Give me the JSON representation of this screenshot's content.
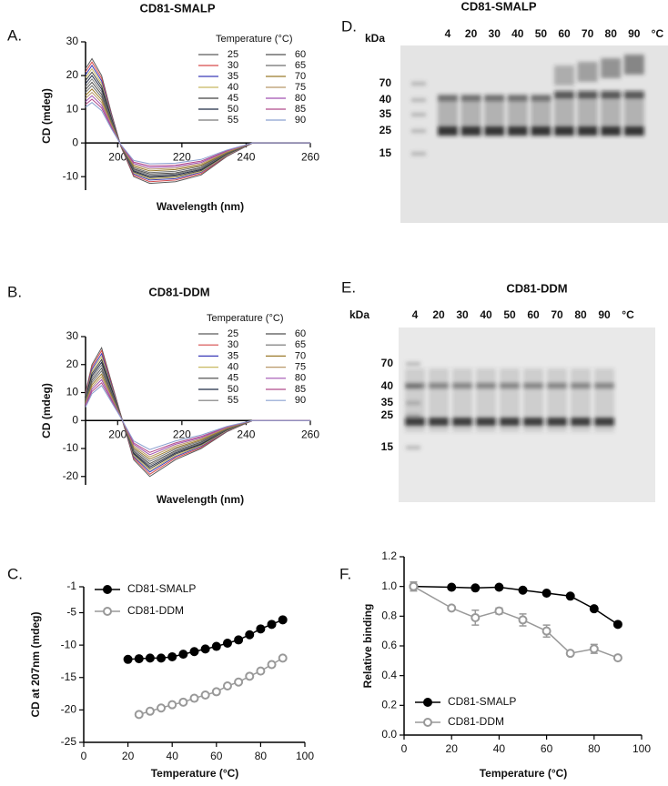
{
  "chart_data": [
    {
      "type": "line",
      "panel_label": "A.",
      "title": "CD81-SMALP",
      "x_label": "Wavelength (nm)",
      "y_label": "CD (mdeg)",
      "legend_title": "Temperature (°C)",
      "x_axis_at_zero": true,
      "xlim": [
        190,
        260
      ],
      "xticks": [
        200,
        220,
        240,
        260
      ],
      "ylim": [
        -14,
        30
      ],
      "yticks": [
        -10,
        0,
        10,
        20,
        30
      ],
      "x": [
        190,
        192,
        195,
        198,
        201,
        205,
        210,
        218,
        226,
        234,
        242,
        260
      ],
      "series": [
        {
          "name": "25",
          "color": "#5a5a5a",
          "values": [
            22,
            25,
            20,
            9,
            -1,
            -10,
            -12,
            -11.5,
            -9.5,
            -4,
            0,
            0
          ]
        },
        {
          "name": "30",
          "color": "#d64a4a",
          "values": [
            21.1,
            24,
            19.2,
            8.6,
            -1,
            -9.6,
            -11.5,
            -11,
            -9.1,
            -3.8,
            0,
            0
          ]
        },
        {
          "name": "35",
          "color": "#3a3ab8",
          "values": [
            20.2,
            23,
            18.4,
            8.3,
            -0.9,
            -9.2,
            -11,
            -10.6,
            -8.7,
            -3.7,
            0,
            0
          ]
        },
        {
          "name": "40",
          "color": "#c8b860",
          "values": [
            19.4,
            22,
            17.6,
            7.9,
            -0.9,
            -8.9,
            -10.7,
            -10.2,
            -8.5,
            -3.6,
            0,
            0
          ]
        },
        {
          "name": "45",
          "color": "#404040",
          "values": [
            18.5,
            21,
            16.8,
            7.6,
            -0.9,
            -8.6,
            -10.3,
            -9.9,
            -8.2,
            -3.4,
            0,
            0
          ]
        },
        {
          "name": "50",
          "color": "#1f2a44",
          "values": [
            17.6,
            20,
            16,
            7.2,
            -0.8,
            -8.3,
            -10,
            -9.5,
            -7.9,
            -3.3,
            0,
            0
          ]
        },
        {
          "name": "55",
          "color": "#7a7a7a",
          "values": [
            16.7,
            19,
            15.2,
            6.8,
            -0.8,
            -8,
            -9.6,
            -9.2,
            -7.6,
            -3.2,
            0,
            0
          ]
        },
        {
          "name": "60",
          "color": "#505050",
          "values": [
            15.8,
            18,
            14.4,
            6.5,
            -0.8,
            -7.7,
            -9.2,
            -8.9,
            -7.3,
            -3.1,
            0,
            0
          ]
        },
        {
          "name": "65",
          "color": "#6e6e6e",
          "values": [
            15,
            17,
            13.6,
            6.1,
            -0.7,
            -7.3,
            -8.8,
            -8.4,
            -6.9,
            -2.9,
            0,
            0
          ]
        },
        {
          "name": "70",
          "color": "#9a7a2a",
          "values": [
            14.1,
            16,
            12.8,
            5.8,
            -0.7,
            -6.9,
            -8.3,
            -7.9,
            -6.6,
            -2.8,
            0,
            0
          ]
        },
        {
          "name": "75",
          "color": "#b89868",
          "values": [
            13.2,
            15,
            12,
            5.4,
            -0.7,
            -6.5,
            -7.8,
            -7.5,
            -6.2,
            -2.6,
            0,
            0
          ]
        },
        {
          "name": "80",
          "color": "#a050b0",
          "values": [
            12.3,
            14,
            11.2,
            5,
            -0.6,
            -6.1,
            -7.3,
            -7,
            -5.8,
            -2.4,
            0,
            0
          ]
        },
        {
          "name": "85",
          "color": "#b04a8a",
          "values": [
            11.4,
            13,
            10.4,
            4.7,
            -0.6,
            -5.7,
            -6.8,
            -6.6,
            -5.4,
            -2.3,
            0,
            0
          ]
        },
        {
          "name": "90",
          "color": "#8aa0d0",
          "values": [
            10.6,
            12,
            9.6,
            4.3,
            -0.5,
            -5.2,
            -6.2,
            -6,
            -4.9,
            -2.1,
            0,
            0
          ]
        }
      ]
    },
    {
      "type": "line",
      "panel_label": "B.",
      "title": "CD81-DDM",
      "x_label": "Wavelength (nm)",
      "y_label": "CD (mdeg)",
      "legend_title": "Temperature (°C)",
      "x_axis_at_zero": true,
      "xlim": [
        190,
        260
      ],
      "xticks": [
        200,
        220,
        240,
        260
      ],
      "ylim": [
        -23,
        30
      ],
      "yticks": [
        -20,
        -10,
        0,
        10,
        20,
        30
      ],
      "x": [
        190,
        192,
        195,
        198,
        201,
        205,
        210,
        218,
        226,
        234,
        242,
        260
      ],
      "series": [
        {
          "name": "25",
          "color": "#5a5a5a",
          "values": [
            10,
            20,
            26,
            14,
            2,
            -14,
            -20,
            -14,
            -10,
            -4,
            0,
            0
          ]
        },
        {
          "name": "30",
          "color": "#d64a4a",
          "values": [
            9.6,
            19.2,
            25,
            13.4,
            1.9,
            -13.4,
            -19.2,
            -13.4,
            -9.6,
            -3.8,
            0,
            0
          ]
        },
        {
          "name": "35",
          "color": "#3a3ab8",
          "values": [
            9.2,
            18.4,
            23.9,
            12.9,
            1.8,
            -12.9,
            -18.4,
            -12.9,
            -9.2,
            -3.7,
            0,
            0
          ]
        },
        {
          "name": "40",
          "color": "#c8b860",
          "values": [
            8.8,
            17.6,
            22.9,
            12.3,
            1.8,
            -12.5,
            -17.8,
            -12.5,
            -8.9,
            -3.6,
            0,
            0
          ]
        },
        {
          "name": "45",
          "color": "#404040",
          "values": [
            8.4,
            16.8,
            21.8,
            11.8,
            1.7,
            -12,
            -17.2,
            -12,
            -8.6,
            -3.4,
            0,
            0
          ]
        },
        {
          "name": "50",
          "color": "#1f2a44",
          "values": [
            8,
            16,
            20.8,
            11.2,
            1.6,
            -11.6,
            -16.6,
            -11.6,
            -8.3,
            -3.3,
            0,
            0
          ]
        },
        {
          "name": "55",
          "color": "#7a7a7a",
          "values": [
            7.6,
            15.2,
            19.8,
            10.6,
            1.5,
            -11.2,
            -16,
            -11.2,
            -8,
            -3.2,
            0,
            0
          ]
        },
        {
          "name": "60",
          "color": "#505050",
          "values": [
            7.2,
            14.4,
            18.7,
            10.1,
            1.4,
            -10.8,
            -15.4,
            -10.8,
            -7.7,
            -3.1,
            0,
            0
          ]
        },
        {
          "name": "65",
          "color": "#6e6e6e",
          "values": [
            6.8,
            13.6,
            17.7,
            9.5,
            1.4,
            -10.2,
            -14.6,
            -10.2,
            -7.3,
            -2.9,
            0,
            0
          ]
        },
        {
          "name": "70",
          "color": "#9a7a2a",
          "values": [
            6.4,
            12.8,
            16.6,
            9,
            1.3,
            -9.7,
            -13.8,
            -9.7,
            -6.9,
            -2.8,
            0,
            0
          ]
        },
        {
          "name": "75",
          "color": "#b89868",
          "values": [
            6,
            12,
            15.6,
            8.4,
            1.2,
            -9.1,
            -13,
            -9.1,
            -6.5,
            -2.6,
            0,
            0
          ]
        },
        {
          "name": "80",
          "color": "#a050b0",
          "values": [
            5.6,
            11.2,
            14.6,
            7.8,
            1.1,
            -8.5,
            -12.2,
            -8.5,
            -6.1,
            -2.4,
            0,
            0
          ]
        },
        {
          "name": "85",
          "color": "#b04a8a",
          "values": [
            5.2,
            10.4,
            13.5,
            7.3,
            1,
            -8,
            -11.4,
            -8,
            -5.7,
            -2.3,
            0,
            0
          ]
        },
        {
          "name": "90",
          "color": "#8aa0d0",
          "values": [
            4.8,
            9.6,
            12.5,
            6.7,
            1,
            -7.3,
            -10.4,
            -7.3,
            -5.2,
            -2.1,
            0,
            0
          ]
        }
      ]
    },
    {
      "type": "line",
      "panel_label": "C.",
      "x_label": "Temperature (°C)",
      "y_label": "CD at 207nm (mdeg)",
      "x_axis_at_zero": false,
      "xlim": [
        0,
        100
      ],
      "xticks": [
        0,
        20,
        40,
        60,
        80,
        100
      ],
      "ylim": [
        -25,
        -1
      ],
      "yticks": [
        -25,
        -20,
        -15,
        -10,
        -5,
        -1
      ],
      "x": [
        20,
        25,
        30,
        35,
        40,
        45,
        50,
        55,
        60,
        65,
        70,
        75,
        80,
        85,
        90
      ],
      "series": [
        {
          "name": "CD81-SMALP",
          "color": "#000000",
          "marker": "filled",
          "values": [
            -12.2,
            -12.1,
            -12.0,
            -12.0,
            -11.8,
            -11.4,
            -11.0,
            -10.6,
            -10.2,
            -9.7,
            -9.2,
            -8.4,
            -7.5,
            -6.8,
            -6.1
          ]
        },
        {
          "name": "CD81-DDM",
          "color": "#999999",
          "marker": "open",
          "values": [
            null,
            -20.7,
            -20.2,
            -19.7,
            -19.2,
            -18.8,
            -18.2,
            -17.7,
            -17.2,
            -16.3,
            -15.7,
            -14.8,
            -14.0,
            -13.0,
            -12.0
          ]
        }
      ]
    },
    {
      "type": "line",
      "panel_label": "F.",
      "x_label": "Temperature (°C)",
      "y_label": "Relative binding",
      "x_axis_at_zero": false,
      "xlim": [
        0,
        100
      ],
      "xticks": [
        0,
        20,
        40,
        60,
        80,
        100
      ],
      "ylim": [
        0,
        1.2
      ],
      "yticks": [
        {
          "value": 0,
          "label": "0.0"
        },
        0.2,
        0.4,
        0.6,
        0.8,
        {
          "value": 1,
          "label": "1.0"
        },
        1.2
      ],
      "x": [
        4,
        20,
        30,
        40,
        50,
        60,
        70,
        80,
        90
      ],
      "series": [
        {
          "name": "CD81-SMALP",
          "color": "#000000",
          "marker": "filled",
          "values": [
            1.0,
            0.995,
            0.99,
            0.995,
            0.975,
            0.955,
            0.935,
            0.85,
            0.745
          ]
        },
        {
          "name": "CD81-DDM",
          "color": "#999999",
          "marker": "open",
          "values": [
            1.0,
            0.855,
            0.79,
            0.835,
            0.775,
            0.7,
            0.55,
            0.58,
            0.52
          ],
          "errors": [
            0.03,
            0.01,
            0.05,
            0.02,
            0.04,
            0.04,
            0.01,
            0.03,
            0.01
          ]
        }
      ]
    }
  ],
  "blots": [
    {
      "panel_label": "D.",
      "title": "CD81-SMALP",
      "unit_label": "kDa",
      "lanes": [
        "4",
        "20",
        "30",
        "40",
        "50",
        "60",
        "70",
        "80",
        "90",
        "°C"
      ],
      "markers": [
        70,
        40,
        35,
        25,
        15
      ]
    },
    {
      "panel_label": "E.",
      "title": "CD81-DDM",
      "unit_label": "kDa",
      "lanes": [
        "4",
        "20",
        "30",
        "40",
        "50",
        "60",
        "70",
        "80",
        "90",
        "°C"
      ],
      "markers": [
        70,
        40,
        35,
        25,
        15
      ]
    }
  ]
}
